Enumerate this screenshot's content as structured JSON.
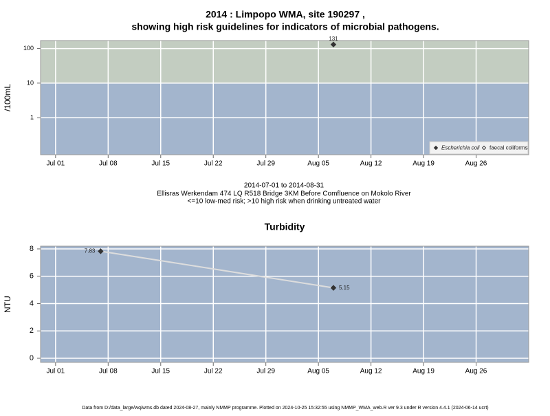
{
  "title": [
    "2014 : Limpopo WMA, site 190297 ,",
    "showing high risk guidelines for indicators of microbial pathogens."
  ],
  "captions": [
    "2014-07-01 to 2014-08-31",
    "Ellisras Werkendam 474 LQ R518 Bridge 3KM Before Comfluence on Mokolo River",
    "<=10 low-med risk; >10 high risk when drinking untreated water"
  ],
  "footer": "Data from D:/data_large/wq/wms.db dated 2024-08-27, mainly NMMP programme. Plotted on 2024-10-25 15:32:55 using NMMP_WMA_web.R ver 9.3 under R version 4.4.1 (2024-06-14 ucrt)",
  "chart_data": [
    {
      "type": "scatter",
      "y_label": "/100mL",
      "log_y": true,
      "grid": true,
      "background": "#a3b5cd",
      "threshold": 10,
      "above_threshold_color": "#c3cdc1",
      "xlim": [
        "2014-06-29",
        "2014-09-02"
      ],
      "xticks": [
        {
          "value": "2014-07-01",
          "label": "Jul 01"
        },
        {
          "value": "2014-07-08",
          "label": "Jul 08"
        },
        {
          "value": "2014-07-15",
          "label": "Jul 15"
        },
        {
          "value": "2014-07-22",
          "label": "Jul 22"
        },
        {
          "value": "2014-07-29",
          "label": "Jul 29"
        },
        {
          "value": "2014-08-05",
          "label": "Aug 05"
        },
        {
          "value": "2014-08-12",
          "label": "Aug 12"
        },
        {
          "value": "2014-08-19",
          "label": "Aug 19"
        },
        {
          "value": "2014-08-26",
          "label": "Aug 26"
        }
      ],
      "ylim": [
        0.085,
        170
      ],
      "yticks": [
        1,
        10,
        100
      ],
      "legend": "bottom-right",
      "series": [
        {
          "name": "Escherichia coli",
          "color": "#333333",
          "marker": "filled",
          "x": [
            "2014-08-07"
          ],
          "values": [
            131
          ],
          "value_labels": [
            "131"
          ]
        },
        {
          "name": "faecal coliforms",
          "color": "#333333",
          "marker": "open",
          "x": [],
          "values": []
        }
      ]
    },
    {
      "type": "line",
      "title": "Turbidity",
      "y_label": "NTU",
      "log_y": false,
      "grid": true,
      "background": "#a3b5cd",
      "xlim": [
        "2014-06-29",
        "2014-09-02"
      ],
      "xticks": [
        {
          "value": "2014-07-01",
          "label": "Jul 01"
        },
        {
          "value": "2014-07-08",
          "label": "Jul 08"
        },
        {
          "value": "2014-07-15",
          "label": "Jul 15"
        },
        {
          "value": "2014-07-22",
          "label": "Jul 22"
        },
        {
          "value": "2014-07-29",
          "label": "Jul 29"
        },
        {
          "value": "2014-08-05",
          "label": "Aug 05"
        },
        {
          "value": "2014-08-12",
          "label": "Aug 12"
        },
        {
          "value": "2014-08-19",
          "label": "Aug 19"
        },
        {
          "value": "2014-08-26",
          "label": "Aug 26"
        }
      ],
      "ylim": [
        -0.3,
        8.2
      ],
      "yticks": [
        0,
        2,
        4,
        6,
        8
      ],
      "series": [
        {
          "name": "Turbidity",
          "color": "#333333",
          "line_color": "#dddddd",
          "x": [
            "2014-07-07",
            "2014-08-07"
          ],
          "values": [
            7.83,
            5.15
          ],
          "value_labels": [
            "7.83",
            "5.15"
          ]
        }
      ]
    }
  ]
}
